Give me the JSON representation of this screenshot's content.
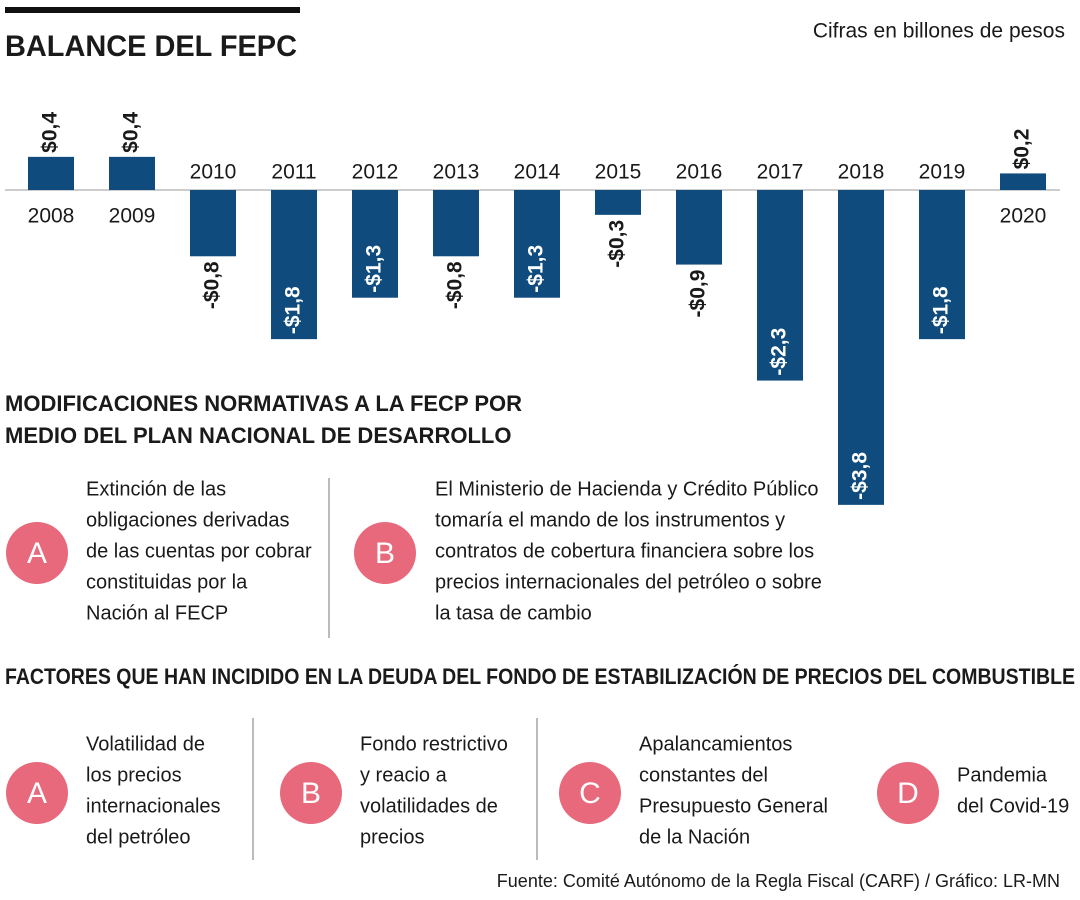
{
  "chart_data": {
    "type": "bar",
    "title": "BALANCE DEL FEPC",
    "subtitle": "Cifras en billones de pesos",
    "categories": [
      "2008",
      "2009",
      "2010",
      "2011",
      "2012",
      "2013",
      "2014",
      "2015",
      "2016",
      "2017",
      "2018",
      "2019",
      "2020"
    ],
    "values": [
      0.4,
      0.4,
      -0.8,
      -1.8,
      -1.3,
      -0.8,
      -1.3,
      -0.3,
      -0.9,
      -2.3,
      -3.8,
      -1.8,
      0.2
    ],
    "value_labels": [
      "$0,4",
      "$0,4",
      "-$0,8",
      "-$1,8",
      "-$1,3",
      "-$0,8",
      "-$1,3",
      "-$0,3",
      "-$0,9",
      "-$2,3",
      "-$3,8",
      "-$1,8",
      "$0,2"
    ],
    "color": "#0f4c7d"
  },
  "modificaciones": {
    "title": [
      "MODIFICACIONES NORMATIVAS A LA FECP POR",
      "MEDIO DEL PLAN NACIONAL DE DESARROLLO"
    ],
    "items": [
      {
        "letter": "A",
        "lines": [
          "Extinción de las",
          "obligaciones derivadas",
          "de las cuentas por cobrar",
          "constituidas por la",
          "Nación al FECP"
        ]
      },
      {
        "letter": "B",
        "lines": [
          "El Ministerio de Hacienda y Crédito Público",
          "tomaría el mando de los instrumentos y",
          "contratos de cobertura financiera sobre los",
          "precios internacionales del petróleo o sobre",
          "la tasa de cambio"
        ]
      }
    ]
  },
  "factores": {
    "title": "FACTORES QUE HAN INCIDIDO EN LA DEUDA DEL FONDO DE ESTABILIZACIÓN DE PRECIOS DEL COMBUSTIBLE",
    "items": [
      {
        "letter": "A",
        "lines": [
          "Volatilidad de",
          "los precios",
          "internacionales",
          "del petróleo"
        ]
      },
      {
        "letter": "B",
        "lines": [
          "Fondo restrictivo",
          "y reacio a",
          "volatilidades de",
          "precios"
        ]
      },
      {
        "letter": "C",
        "lines": [
          "Apalancamientos",
          "constantes del",
          "Presupuesto General",
          "de la Nación"
        ]
      },
      {
        "letter": "D",
        "lines": [
          "Pandemia",
          "del Covid-19"
        ]
      }
    ]
  },
  "source": "Fuente: Comité Autónomo de la Regla Fiscal (CARF) / Gráfico: LR-MN"
}
